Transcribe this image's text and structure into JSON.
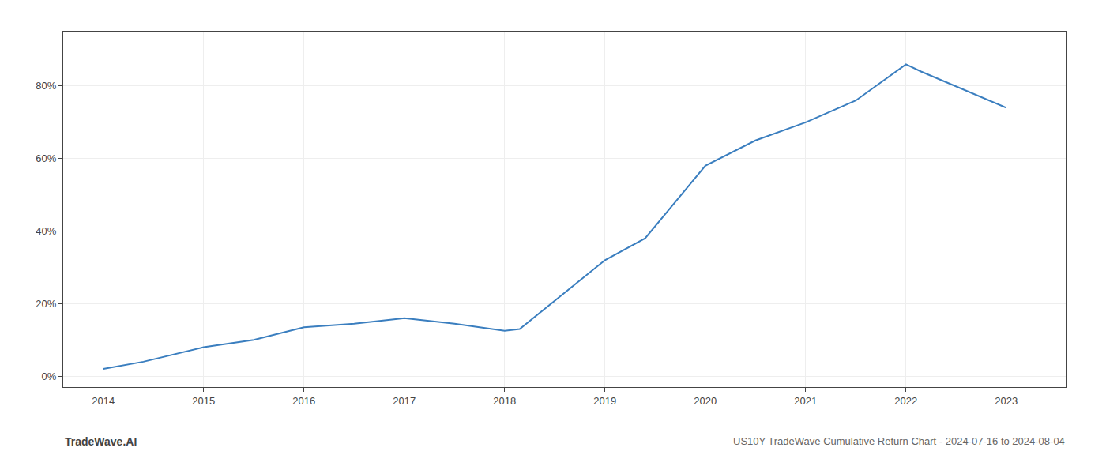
{
  "chart_data": {
    "type": "line",
    "title": "US10Y TradeWave Cumulative Return Chart - 2024-07-16 to 2024-08-04",
    "annotations": [
      {
        "text": "TradeWave.AI"
      }
    ],
    "x": [
      2014,
      2014.4,
      2015,
      2015.5,
      2016,
      2016.5,
      2017,
      2017.5,
      2018,
      2018.15,
      2019,
      2019.4,
      2020,
      2020.5,
      2021,
      2021.5,
      2022,
      2022.15,
      2023
    ],
    "values": [
      2,
      4,
      8,
      10,
      13.5,
      14.5,
      16,
      14.5,
      12.5,
      13,
      32,
      38,
      58,
      65,
      70,
      76,
      86,
      84,
      74
    ],
    "color": "#3a7ebf",
    "xlim": [
      2013.6,
      2023.6
    ],
    "ylim": [
      -3,
      95
    ],
    "xticks": [
      2014,
      2015,
      2016,
      2017,
      2018,
      2019,
      2020,
      2021,
      2022,
      2023
    ],
    "yticks": [
      {
        "value": 0,
        "label": "0%"
      },
      {
        "value": 20,
        "label": "20%"
      },
      {
        "value": 40,
        "label": "40%"
      },
      {
        "value": 60,
        "label": "60%"
      },
      {
        "value": 80,
        "label": "80%"
      }
    ],
    "grid": true
  }
}
